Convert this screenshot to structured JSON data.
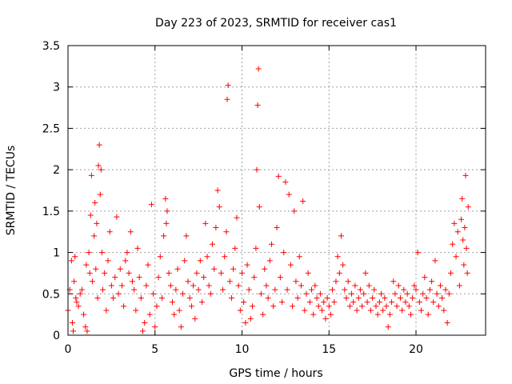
{
  "chart_data": {
    "type": "scatter",
    "title": "Day 223 of 2023, SRMTID for receiver cas1",
    "xlabel": "GPS time / hours",
    "ylabel": "SRMTID / TECUs",
    "xlim": [
      0,
      24
    ],
    "ylim": [
      0,
      3.5
    ],
    "xticks": [
      0,
      5,
      10,
      15,
      20
    ],
    "xtick_labels": [
      "0",
      "5",
      "10",
      "15",
      "20"
    ],
    "yticks": [
      0,
      0.5,
      1,
      1.5,
      2,
      2.5,
      3,
      3.5
    ],
    "ytick_labels": [
      "0",
      "0.5",
      "1",
      "1.5",
      "2",
      "2.5",
      "3",
      "3.5"
    ],
    "grid": true,
    "marker": "plus",
    "color": "#ff0000",
    "series": [
      {
        "name": "cas1",
        "points": [
          [
            0.0,
            0.3
          ],
          [
            0.1,
            0.55
          ],
          [
            0.2,
            0.9
          ],
          [
            0.25,
            0.15
          ],
          [
            0.3,
            0.05
          ],
          [
            0.35,
            0.65
          ],
          [
            0.4,
            0.95
          ],
          [
            0.45,
            0.45
          ],
          [
            0.5,
            0.4
          ],
          [
            0.6,
            0.35
          ],
          [
            0.7,
            0.5
          ],
          [
            0.8,
            0.55
          ],
          [
            0.9,
            0.25
          ],
          [
            1.0,
            0.1
          ],
          [
            1.05,
            0.85
          ],
          [
            1.1,
            0.05
          ],
          [
            1.2,
            1.0
          ],
          [
            1.25,
            0.75
          ],
          [
            1.3,
            1.45
          ],
          [
            1.35,
            1.93
          ],
          [
            1.4,
            0.65
          ],
          [
            1.5,
            1.2
          ],
          [
            1.55,
            1.6
          ],
          [
            1.6,
            0.8
          ],
          [
            1.65,
            1.35
          ],
          [
            1.7,
            0.45
          ],
          [
            1.75,
            2.05
          ],
          [
            1.8,
            2.3
          ],
          [
            1.85,
            1.7
          ],
          [
            1.9,
            2.0
          ],
          [
            1.95,
            1.0
          ],
          [
            2.0,
            0.55
          ],
          [
            2.1,
            0.75
          ],
          [
            2.2,
            0.3
          ],
          [
            2.3,
            0.9
          ],
          [
            2.4,
            1.25
          ],
          [
            2.5,
            0.6
          ],
          [
            2.6,
            0.45
          ],
          [
            2.7,
            0.7
          ],
          [
            2.8,
            1.43
          ],
          [
            2.9,
            0.5
          ],
          [
            3.0,
            0.8
          ],
          [
            3.1,
            0.6
          ],
          [
            3.2,
            0.35
          ],
          [
            3.3,
            0.9
          ],
          [
            3.4,
            1.0
          ],
          [
            3.5,
            0.75
          ],
          [
            3.6,
            1.25
          ],
          [
            3.7,
            0.65
          ],
          [
            3.8,
            0.55
          ],
          [
            3.9,
            0.3
          ],
          [
            4.0,
            1.05
          ],
          [
            4.1,
            0.7
          ],
          [
            4.2,
            0.45
          ],
          [
            4.3,
            0.05
          ],
          [
            4.4,
            0.15
          ],
          [
            4.5,
            0.6
          ],
          [
            4.6,
            0.85
          ],
          [
            4.7,
            0.25
          ],
          [
            4.8,
            1.58
          ],
          [
            4.9,
            0.5
          ],
          [
            5.0,
            0.1
          ],
          [
            5.1,
            0.35
          ],
          [
            5.2,
            0.7
          ],
          [
            5.3,
            0.95
          ],
          [
            5.4,
            0.45
          ],
          [
            5.5,
            1.2
          ],
          [
            5.6,
            1.65
          ],
          [
            5.65,
            1.35
          ],
          [
            5.7,
            1.5
          ],
          [
            5.8,
            0.75
          ],
          [
            5.9,
            0.6
          ],
          [
            6.0,
            0.4
          ],
          [
            6.1,
            0.25
          ],
          [
            6.2,
            0.55
          ],
          [
            6.3,
            0.8
          ],
          [
            6.4,
            0.3
          ],
          [
            6.5,
            0.1
          ],
          [
            6.6,
            0.5
          ],
          [
            6.7,
            0.9
          ],
          [
            6.8,
            1.2
          ],
          [
            6.9,
            0.65
          ],
          [
            7.0,
            0.45
          ],
          [
            7.1,
            0.35
          ],
          [
            7.2,
            0.6
          ],
          [
            7.3,
            0.2
          ],
          [
            7.4,
            0.75
          ],
          [
            7.5,
            0.55
          ],
          [
            7.6,
            0.9
          ],
          [
            7.7,
            0.4
          ],
          [
            7.8,
            0.7
          ],
          [
            7.9,
            1.35
          ],
          [
            8.0,
            0.95
          ],
          [
            8.1,
            0.6
          ],
          [
            8.2,
            0.5
          ],
          [
            8.3,
            1.1
          ],
          [
            8.4,
            0.8
          ],
          [
            8.5,
            1.3
          ],
          [
            8.6,
            1.75
          ],
          [
            8.7,
            1.55
          ],
          [
            8.8,
            0.75
          ],
          [
            8.9,
            0.55
          ],
          [
            9.0,
            0.95
          ],
          [
            9.1,
            1.25
          ],
          [
            9.15,
            2.85
          ],
          [
            9.2,
            3.02
          ],
          [
            9.3,
            0.65
          ],
          [
            9.4,
            0.45
          ],
          [
            9.5,
            0.8
          ],
          [
            9.6,
            1.05
          ],
          [
            9.7,
            1.42
          ],
          [
            9.8,
            0.6
          ],
          [
            9.9,
            0.3
          ],
          [
            10.0,
            0.75
          ],
          [
            10.1,
            0.4
          ],
          [
            10.2,
            0.15
          ],
          [
            10.3,
            0.85
          ],
          [
            10.4,
            0.55
          ],
          [
            10.5,
            0.2
          ],
          [
            10.6,
            0.35
          ],
          [
            10.7,
            0.7
          ],
          [
            10.8,
            1.05
          ],
          [
            10.85,
            2.0
          ],
          [
            10.9,
            2.78
          ],
          [
            10.95,
            3.22
          ],
          [
            11.0,
            1.55
          ],
          [
            11.1,
            0.5
          ],
          [
            11.2,
            0.25
          ],
          [
            11.3,
            0.8
          ],
          [
            11.4,
            0.6
          ],
          [
            11.5,
            0.45
          ],
          [
            11.6,
            0.9
          ],
          [
            11.7,
            1.1
          ],
          [
            11.8,
            0.35
          ],
          [
            11.9,
            0.55
          ],
          [
            12.0,
            1.3
          ],
          [
            12.1,
            1.92
          ],
          [
            12.2,
            0.7
          ],
          [
            12.3,
            0.4
          ],
          [
            12.4,
            1.0
          ],
          [
            12.5,
            1.85
          ],
          [
            12.6,
            0.55
          ],
          [
            12.7,
            1.7
          ],
          [
            12.8,
            0.85
          ],
          [
            12.9,
            0.35
          ],
          [
            13.0,
            1.5
          ],
          [
            13.1,
            0.65
          ],
          [
            13.2,
            0.45
          ],
          [
            13.3,
            0.95
          ],
          [
            13.4,
            0.6
          ],
          [
            13.5,
            1.62
          ],
          [
            13.6,
            0.3
          ],
          [
            13.7,
            0.5
          ],
          [
            13.8,
            0.75
          ],
          [
            13.9,
            0.4
          ],
          [
            14.0,
            0.55
          ],
          [
            14.1,
            0.25
          ],
          [
            14.2,
            0.6
          ],
          [
            14.3,
            0.45
          ],
          [
            14.4,
            0.35
          ],
          [
            14.5,
            0.5
          ],
          [
            14.6,
            0.3
          ],
          [
            14.7,
            0.4
          ],
          [
            14.8,
            0.2
          ],
          [
            14.9,
            0.45
          ],
          [
            15.0,
            0.35
          ],
          [
            15.1,
            0.25
          ],
          [
            15.2,
            0.55
          ],
          [
            15.3,
            0.4
          ],
          [
            15.4,
            0.65
          ],
          [
            15.5,
            0.95
          ],
          [
            15.6,
            0.75
          ],
          [
            15.7,
            1.2
          ],
          [
            15.8,
            0.85
          ],
          [
            15.9,
            0.55
          ],
          [
            16.0,
            0.45
          ],
          [
            16.1,
            0.65
          ],
          [
            16.2,
            0.35
          ],
          [
            16.3,
            0.5
          ],
          [
            16.4,
            0.4
          ],
          [
            16.5,
            0.6
          ],
          [
            16.6,
            0.3
          ],
          [
            16.7,
            0.45
          ],
          [
            16.8,
            0.55
          ],
          [
            16.9,
            0.35
          ],
          [
            17.0,
            0.5
          ],
          [
            17.1,
            0.75
          ],
          [
            17.2,
            0.4
          ],
          [
            17.3,
            0.6
          ],
          [
            17.4,
            0.3
          ],
          [
            17.5,
            0.45
          ],
          [
            17.6,
            0.55
          ],
          [
            17.7,
            0.35
          ],
          [
            17.8,
            0.25
          ],
          [
            17.9,
            0.4
          ],
          [
            18.0,
            0.5
          ],
          [
            18.1,
            0.3
          ],
          [
            18.2,
            0.45
          ],
          [
            18.3,
            0.35
          ],
          [
            18.4,
            0.1
          ],
          [
            18.5,
            0.25
          ],
          [
            18.6,
            0.4
          ],
          [
            18.7,
            0.65
          ],
          [
            18.8,
            0.5
          ],
          [
            18.9,
            0.35
          ],
          [
            19.0,
            0.6
          ],
          [
            19.1,
            0.45
          ],
          [
            19.2,
            0.3
          ],
          [
            19.3,
            0.55
          ],
          [
            19.4,
            0.4
          ],
          [
            19.5,
            0.5
          ],
          [
            19.6,
            0.35
          ],
          [
            19.7,
            0.25
          ],
          [
            19.8,
            0.45
          ],
          [
            19.9,
            0.6
          ],
          [
            20.0,
            0.55
          ],
          [
            20.1,
            1.0
          ],
          [
            20.2,
            0.4
          ],
          [
            20.3,
            0.3
          ],
          [
            20.4,
            0.5
          ],
          [
            20.5,
            0.7
          ],
          [
            20.6,
            0.45
          ],
          [
            20.7,
            0.25
          ],
          [
            20.8,
            0.55
          ],
          [
            20.9,
            0.65
          ],
          [
            21.0,
            0.4
          ],
          [
            21.1,
            0.9
          ],
          [
            21.2,
            0.5
          ],
          [
            21.3,
            0.35
          ],
          [
            21.4,
            0.6
          ],
          [
            21.5,
            0.45
          ],
          [
            21.6,
            0.3
          ],
          [
            21.7,
            0.55
          ],
          [
            21.8,
            0.15
          ],
          [
            21.9,
            0.5
          ],
          [
            22.0,
            0.75
          ],
          [
            22.1,
            1.1
          ],
          [
            22.2,
            1.35
          ],
          [
            22.3,
            0.95
          ],
          [
            22.4,
            1.25
          ],
          [
            22.5,
            0.6
          ],
          [
            22.6,
            1.4
          ],
          [
            22.65,
            1.65
          ],
          [
            22.7,
            1.15
          ],
          [
            22.75,
            0.85
          ],
          [
            22.8,
            1.3
          ],
          [
            22.85,
            1.93
          ],
          [
            22.9,
            1.05
          ],
          [
            22.95,
            0.75
          ],
          [
            23.0,
            1.55
          ]
        ]
      }
    ]
  }
}
